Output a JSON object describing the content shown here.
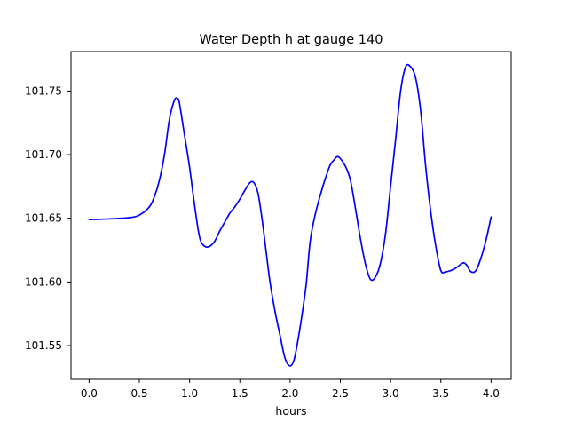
{
  "chart_data": {
    "type": "line",
    "title": "Water Depth h at gauge 140",
    "xlabel": "hours",
    "ylabel": "",
    "xlim": [
      -0.18,
      4.2
    ],
    "ylim": [
      101.5235,
      101.781
    ],
    "x_ticks": [
      0.0,
      0.5,
      1.0,
      1.5,
      2.0,
      2.5,
      3.0,
      3.5,
      4.0
    ],
    "x_tick_labels": [
      "0.0",
      "0.5",
      "1.0",
      "1.5",
      "2.0",
      "2.5",
      "3.0",
      "3.5",
      "4.0"
    ],
    "y_ticks": [
      101.55,
      101.6,
      101.65,
      101.7,
      101.75
    ],
    "y_tick_labels": [
      "101.55",
      "101.60",
      "101.65",
      "101.70",
      "101.75"
    ],
    "grid": false,
    "legend": "none",
    "line_color": "#0000ff",
    "series": [
      {
        "x": [
          0.0,
          0.2,
          0.4,
          0.5,
          0.6,
          0.65,
          0.7,
          0.75,
          0.8,
          0.85,
          0.88,
          0.9,
          0.95,
          1.0,
          1.05,
          1.1,
          1.15,
          1.2,
          1.25,
          1.3,
          1.35,
          1.4,
          1.45,
          1.5,
          1.55,
          1.6,
          1.64,
          1.68,
          1.72,
          1.76,
          1.8,
          1.85,
          1.9,
          1.95,
          2.0,
          2.04,
          2.08,
          2.12,
          2.16,
          2.2,
          2.25,
          2.3,
          2.35,
          2.4,
          2.45,
          2.47,
          2.5,
          2.55,
          2.6,
          2.65,
          2.7,
          2.75,
          2.8,
          2.85,
          2.9,
          2.95,
          3.0,
          3.05,
          3.1,
          3.15,
          3.2,
          3.25,
          3.3,
          3.35,
          3.4,
          3.45,
          3.5,
          3.55,
          3.6,
          3.65,
          3.7,
          3.73,
          3.76,
          3.8,
          3.85,
          3.9,
          3.95,
          4.0
        ],
        "y": [
          101.649,
          101.6495,
          101.6505,
          101.6525,
          101.659,
          101.667,
          101.68,
          101.7,
          101.728,
          101.743,
          101.744,
          101.74,
          101.715,
          101.69,
          101.66,
          101.635,
          101.628,
          101.628,
          101.632,
          101.64,
          101.647,
          101.654,
          101.659,
          101.665,
          101.672,
          101.678,
          101.678,
          101.67,
          101.65,
          101.625,
          101.6,
          101.577,
          101.558,
          101.54,
          101.534,
          101.539,
          101.555,
          101.575,
          101.598,
          101.632,
          101.653,
          101.668,
          101.681,
          101.692,
          101.697,
          101.6985,
          101.697,
          101.691,
          101.68,
          101.658,
          101.634,
          101.614,
          101.602,
          101.604,
          101.615,
          101.638,
          101.675,
          101.712,
          101.75,
          101.769,
          101.769,
          101.76,
          101.734,
          101.69,
          101.655,
          101.628,
          101.609,
          101.608,
          101.609,
          101.611,
          101.614,
          101.615,
          101.613,
          101.608,
          101.609,
          101.619,
          101.633,
          101.651
        ]
      }
    ]
  }
}
